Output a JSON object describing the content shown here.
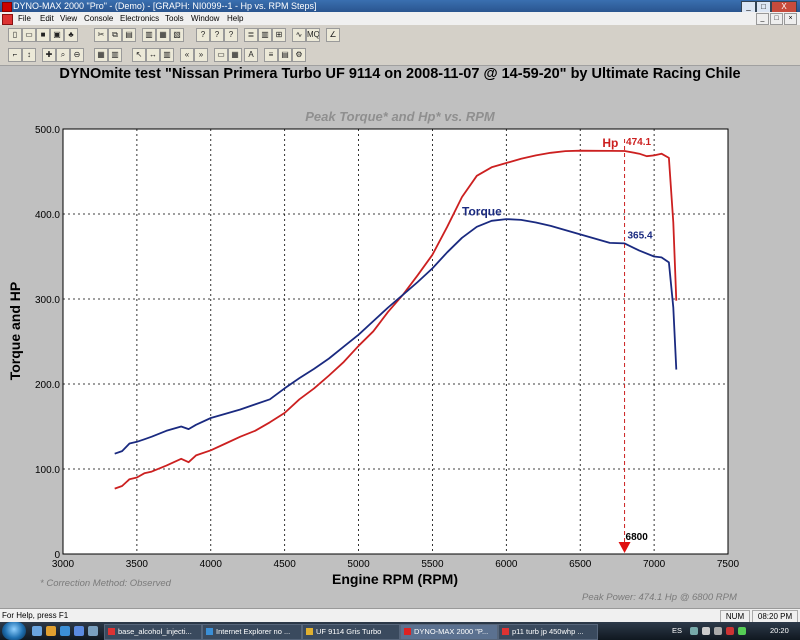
{
  "window": {
    "title": "DYNO-MAX 2000 \"Pro\" - (Demo) - [GRAPH: NI0099--1 - Hp vs. RPM Steps]",
    "min_glyph": "_",
    "max_glyph": "□",
    "close_glyph": "X"
  },
  "menu": [
    "File",
    "Edit",
    "View",
    "Console",
    "Electronics",
    "Tools",
    "Window",
    "Help"
  ],
  "mdi_controls": [
    "_",
    "□",
    "×"
  ],
  "toolbar1_icons": [
    "new-icon",
    "open-icon",
    "save-icon",
    "floppy-icon",
    "tree-icon",
    "cut-icon",
    "copy-icon",
    "paste-icon",
    "preview-icon",
    "print-icon",
    "page-icon",
    "key-icon",
    "help-icon",
    "context-help-icon",
    "list-icon",
    "grid-icon",
    "table-icon",
    "wave-icon",
    "mq-icon",
    "hz-icon"
  ],
  "toolbar1_glyphs": [
    "▯",
    "▭",
    "■",
    "▣",
    "♣",
    "✂",
    "⧉",
    "▤",
    "▥",
    "▦",
    "▧",
    "?",
    "?",
    "?",
    "≣",
    "▥",
    "⊞",
    "∿",
    "MQ",
    "∠"
  ],
  "toolbar2_icons": [
    "divider-icon",
    "marker-icon",
    "run-icon",
    "zoom-icon",
    "zoom-out-icon",
    "chart-icon",
    "bar-chart-icon",
    "cursor-icon",
    "pan-icon",
    "scale-icon",
    "prev-icon",
    "next-icon",
    "window-icon",
    "grid-toggle-icon",
    "font-icon",
    "notes-icon",
    "book-icon",
    "dyno-icon"
  ],
  "toolbar2_glyphs": [
    "⌐",
    "↕",
    "✚",
    "⌕",
    "⊖",
    "▦",
    "▥",
    "↖",
    "↔",
    "▥",
    "«",
    "»",
    "▭",
    "▦",
    "A",
    "≡",
    "▤",
    "⚙"
  ],
  "graph": {
    "title": "DYNOmite test \"Nissan Primera Turbo UF 9114 on 2008-11-07 @ 14-59-20\" by Ultimate Racing Chile",
    "subtitle": "Peak Torque* and Hp* vs. RPM",
    "correction": "* Correction Method: Observed",
    "peak_power": "Peak Power: 474.1 Hp @ 6800 RPM"
  },
  "chart_data": {
    "type": "line",
    "xlabel": "Engine RPM (RPM)",
    "ylabel": "Torque and HP",
    "xlim": [
      3000,
      7500
    ],
    "ylim": [
      0,
      500
    ],
    "x_ticks": [
      "3000",
      "3500",
      "4000",
      "4500",
      "5000",
      "5500",
      "6000",
      "6500",
      "7000",
      "7500"
    ],
    "y_ticks": [
      "0",
      "100.0",
      "200.0",
      "300.0",
      "400.0",
      "500.0"
    ],
    "grid": true,
    "series": [
      {
        "name": "Hp",
        "color": "#cc2020",
        "label_value": "474.1",
        "points": [
          [
            3350,
            77
          ],
          [
            3400,
            80
          ],
          [
            3450,
            88
          ],
          [
            3500,
            90
          ],
          [
            3550,
            95
          ],
          [
            3600,
            97
          ],
          [
            3700,
            104
          ],
          [
            3800,
            112
          ],
          [
            3850,
            108
          ],
          [
            3900,
            116
          ],
          [
            4000,
            122
          ],
          [
            4100,
            130
          ],
          [
            4200,
            138
          ],
          [
            4300,
            145
          ],
          [
            4400,
            155
          ],
          [
            4500,
            166
          ],
          [
            4600,
            182
          ],
          [
            4700,
            195
          ],
          [
            4800,
            210
          ],
          [
            4900,
            226
          ],
          [
            5000,
            245
          ],
          [
            5100,
            262
          ],
          [
            5200,
            285
          ],
          [
            5300,
            305
          ],
          [
            5400,
            328
          ],
          [
            5500,
            352
          ],
          [
            5600,
            385
          ],
          [
            5700,
            420
          ],
          [
            5800,
            445
          ],
          [
            5900,
            455
          ],
          [
            6000,
            460
          ],
          [
            6100,
            465
          ],
          [
            6200,
            469
          ],
          [
            6300,
            472
          ],
          [
            6400,
            474
          ],
          [
            6500,
            474.5
          ],
          [
            6600,
            474.3
          ],
          [
            6700,
            474.2
          ],
          [
            6800,
            474.1
          ],
          [
            6900,
            471
          ],
          [
            6950,
            468
          ],
          [
            7000,
            469
          ],
          [
            7050,
            471
          ],
          [
            7100,
            466
          ],
          [
            7130,
            390
          ],
          [
            7150,
            298
          ]
        ]
      },
      {
        "name": "Torque",
        "color": "#1a2a80",
        "label_value": "365.4",
        "points": [
          [
            3350,
            118
          ],
          [
            3400,
            121
          ],
          [
            3450,
            130
          ],
          [
            3500,
            132
          ],
          [
            3550,
            135
          ],
          [
            3600,
            138
          ],
          [
            3700,
            145
          ],
          [
            3800,
            150
          ],
          [
            3850,
            147
          ],
          [
            3900,
            152
          ],
          [
            4000,
            160
          ],
          [
            4100,
            165
          ],
          [
            4200,
            170
          ],
          [
            4300,
            176
          ],
          [
            4400,
            182
          ],
          [
            4500,
            195
          ],
          [
            4600,
            207
          ],
          [
            4700,
            218
          ],
          [
            4800,
            230
          ],
          [
            4900,
            244
          ],
          [
            5000,
            258
          ],
          [
            5100,
            274
          ],
          [
            5200,
            290
          ],
          [
            5300,
            305
          ],
          [
            5400,
            320
          ],
          [
            5500,
            336
          ],
          [
            5600,
            355
          ],
          [
            5700,
            372
          ],
          [
            5800,
            385
          ],
          [
            5900,
            392
          ],
          [
            6000,
            394
          ],
          [
            6100,
            393
          ],
          [
            6200,
            390
          ],
          [
            6300,
            386
          ],
          [
            6400,
            381
          ],
          [
            6500,
            376
          ],
          [
            6600,
            371
          ],
          [
            6700,
            366
          ],
          [
            6800,
            365.4
          ],
          [
            6900,
            357
          ],
          [
            7000,
            350
          ],
          [
            7050,
            349
          ],
          [
            7100,
            343
          ],
          [
            7130,
            290
          ],
          [
            7150,
            217
          ]
        ]
      }
    ],
    "marker": {
      "rpm": 6800,
      "label": "6800"
    }
  },
  "status": {
    "left": "For Help, press F1",
    "num": "NUM",
    "time": "08:20 PM"
  },
  "taskbar": {
    "tasks": [
      "base_alcohol_injecti...",
      "Internet Explorer no ...",
      "UF 9114 Gris Turbo",
      "DYNO-MAX 2000 \"P...",
      "p11 turb jp 450whp ..."
    ],
    "lang": "ES",
    "clock": "20:20"
  }
}
